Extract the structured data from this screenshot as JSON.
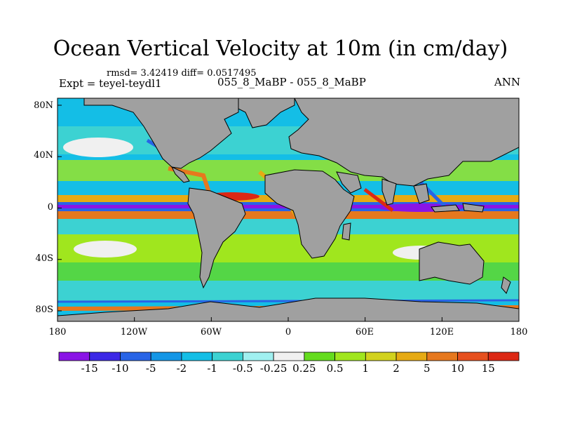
{
  "title": "Ocean Vertical Velocity at 10m (in cm/day)",
  "stats": "rmsd= 3.42419 diff= 0.0517495",
  "experiment": "Expt = teyel-teydl1",
  "cases": "055_8_MaBP - 055_8_MaBP",
  "season": "ANN",
  "lat_labels": [
    "80N",
    "40N",
    "0",
    "40S",
    "80S"
  ],
  "lon_labels": [
    "180",
    "120W",
    "60W",
    "0",
    "60E",
    "120E",
    "180"
  ],
  "colorbar": {
    "labels": [
      "-15",
      "-10",
      "-5",
      "-2",
      "-1",
      "-0.5",
      "-0.25",
      "0.25",
      "0.5",
      "1",
      "2",
      "5",
      "10",
      "15"
    ],
    "colors": [
      "#8a14e6",
      "#3c28e6",
      "#2864e6",
      "#1496e6",
      "#14bee6",
      "#3cd2d2",
      "#a0f0f0",
      "#f0f0f0",
      "#64dc1e",
      "#a0e61e",
      "#d2d21e",
      "#e6aa14",
      "#e6781e",
      "#e6501e",
      "#dc2814"
    ]
  },
  "land_color": "#a0a0a0"
}
